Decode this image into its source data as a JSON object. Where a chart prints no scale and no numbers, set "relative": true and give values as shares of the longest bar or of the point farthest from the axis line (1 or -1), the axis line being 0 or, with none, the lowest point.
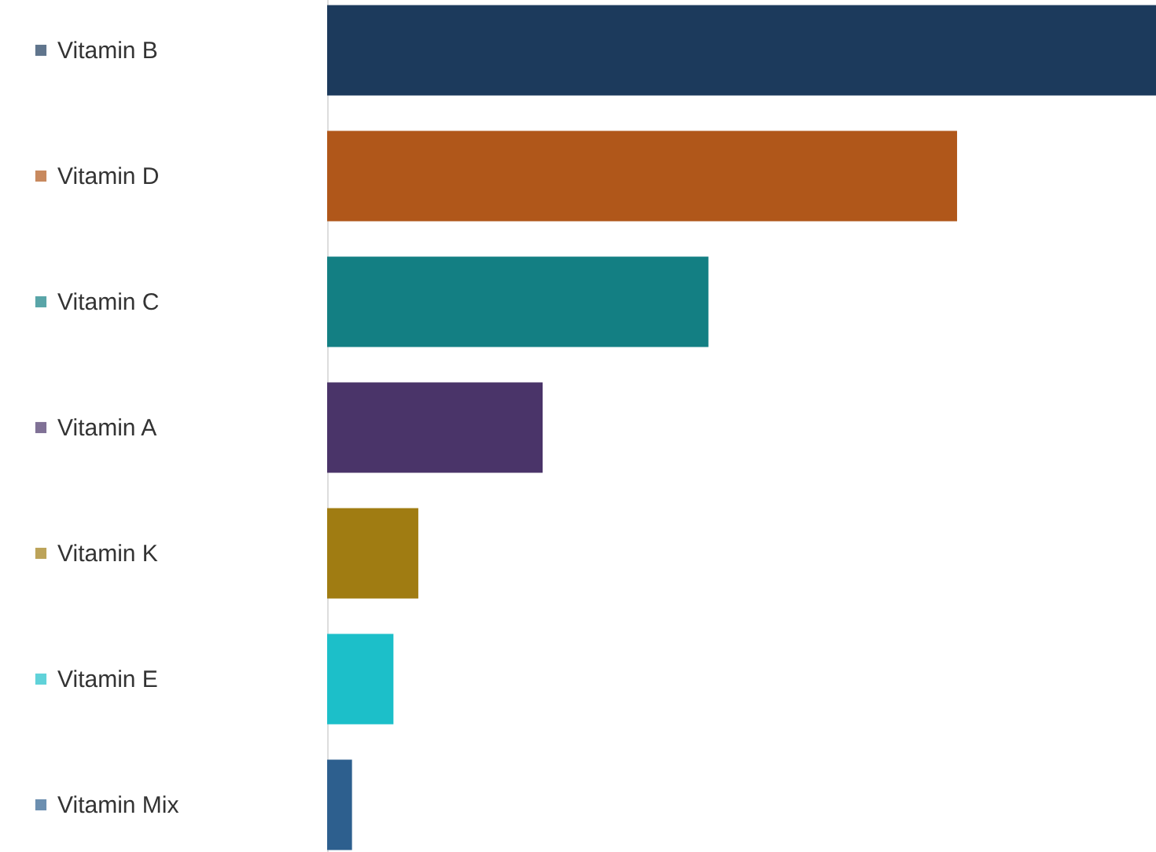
{
  "chart_data": {
    "type": "bar",
    "orientation": "horizontal",
    "relative": true,
    "categories": [
      "Vitamin B",
      "Vitamin D",
      "Vitamin C",
      "Vitamin A",
      "Vitamin K",
      "Vitamin E",
      "Vitamin Mix"
    ],
    "values": [
      1,
      0.76,
      0.46,
      0.26,
      0.11,
      0.08,
      0.03
    ],
    "colors": [
      "#1c3a5c",
      "#b0571a",
      "#137f83",
      "#4a3469",
      "#a07c12",
      "#1cbfc9",
      "#2d5f8e"
    ],
    "grid": false,
    "legend": false
  }
}
